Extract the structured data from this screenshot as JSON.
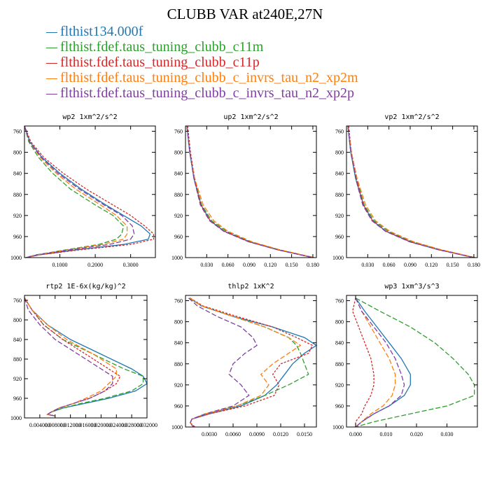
{
  "figure": {
    "title": "CLUBB VAR at240E,27N"
  },
  "legend": [
    {
      "name": "flthist134.000f",
      "color": "#1f77b4"
    },
    {
      "name": "flthist.fdef.taus_tuning_clubb_c11m",
      "color": "#2ca02c"
    },
    {
      "name": "flthist.fdef.taus_tuning_clubb_c11p",
      "color": "#d62728"
    },
    {
      "name": "flthist.fdef.taus_tuning_clubb_c_invrs_tau_n2_xp2m",
      "color": "#ff7f0e"
    },
    {
      "name": "flthist.fdef.taus_tuning_clubb_c_invrs_tau_n2_xp2p",
      "color": "#7f3fa0"
    }
  ],
  "chart_data": [
    {
      "type": "line",
      "title": "wp2  1xm^2/s^2",
      "xlim": [
        0,
        0.37
      ],
      "ylim": [
        750,
        1000
      ],
      "xticks": [
        0.1,
        0.2,
        0.3
      ],
      "xtick_labels": [
        "0.1000",
        "0.2000",
        "0.3000"
      ],
      "yticks": [
        760,
        800,
        840,
        880,
        920,
        960,
        1000
      ],
      "ytick_labels": [
        "760",
        "800",
        "840",
        "880",
        "920",
        "960",
        "1000"
      ],
      "y": [
        750,
        780,
        810,
        840,
        870,
        900,
        920,
        940,
        955,
        965,
        975,
        985,
        995,
        1000
      ],
      "series": [
        {
          "values": [
            0.0,
            0.015,
            0.05,
            0.1,
            0.16,
            0.23,
            0.28,
            0.33,
            0.355,
            0.35,
            0.28,
            0.15,
            0.04,
            0.005
          ]
        },
        {
          "values": [
            0.0,
            0.012,
            0.04,
            0.08,
            0.13,
            0.2,
            0.25,
            0.28,
            0.275,
            0.26,
            0.21,
            0.12,
            0.03,
            0.003
          ]
        },
        {
          "values": [
            0.0,
            0.018,
            0.055,
            0.11,
            0.175,
            0.25,
            0.3,
            0.34,
            0.365,
            0.365,
            0.3,
            0.16,
            0.04,
            0.005
          ]
        },
        {
          "values": [
            0.0,
            0.014,
            0.045,
            0.09,
            0.145,
            0.215,
            0.26,
            0.29,
            0.29,
            0.28,
            0.22,
            0.125,
            0.035,
            0.004
          ]
        },
        {
          "values": [
            0.0,
            0.014,
            0.048,
            0.095,
            0.155,
            0.225,
            0.275,
            0.305,
            0.31,
            0.3,
            0.24,
            0.13,
            0.035,
            0.004
          ]
        }
      ]
    },
    {
      "type": "line",
      "title": "up2  1xm^2/s^2",
      "xlim": [
        0,
        0.185
      ],
      "ylim": [
        750,
        1000
      ],
      "xticks": [
        0.03,
        0.06,
        0.09,
        0.12,
        0.15,
        0.18
      ],
      "xtick_labels": [
        "0.030",
        "0.060",
        "0.090",
        "0.120",
        "0.150",
        "0.180"
      ],
      "yticks": [
        760,
        800,
        840,
        880,
        920,
        960,
        1000
      ],
      "ytick_labels": [
        "760",
        "800",
        "840",
        "880",
        "920",
        "960",
        "1000"
      ],
      "y": [
        750,
        800,
        850,
        900,
        930,
        950,
        970,
        985,
        1000
      ],
      "series": [
        {
          "values": [
            0.002,
            0.006,
            0.012,
            0.022,
            0.035,
            0.055,
            0.09,
            0.13,
            0.18
          ]
        },
        {
          "values": [
            0.002,
            0.006,
            0.012,
            0.023,
            0.037,
            0.058,
            0.092,
            0.132,
            0.182
          ]
        },
        {
          "values": [
            0.003,
            0.007,
            0.013,
            0.022,
            0.035,
            0.055,
            0.09,
            0.13,
            0.18
          ]
        },
        {
          "values": [
            0.002,
            0.006,
            0.013,
            0.025,
            0.04,
            0.06,
            0.094,
            0.133,
            0.182
          ]
        },
        {
          "values": [
            0.002,
            0.006,
            0.012,
            0.021,
            0.034,
            0.054,
            0.089,
            0.13,
            0.18
          ]
        }
      ]
    },
    {
      "type": "line",
      "title": "vp2  1xm^2/s^2",
      "xlim": [
        0,
        0.185
      ],
      "ylim": [
        750,
        1000
      ],
      "xticks": [
        0.03,
        0.06,
        0.09,
        0.12,
        0.15,
        0.18
      ],
      "xtick_labels": [
        "0.030",
        "0.060",
        "0.090",
        "0.120",
        "0.150",
        "0.180"
      ],
      "yticks": [
        760,
        800,
        840,
        880,
        920,
        960,
        1000
      ],
      "ytick_labels": [
        "760",
        "800",
        "840",
        "880",
        "920",
        "960",
        "1000"
      ],
      "y": [
        750,
        800,
        850,
        900,
        930,
        950,
        970,
        985,
        1000
      ],
      "series": [
        {
          "values": [
            0.002,
            0.006,
            0.013,
            0.024,
            0.037,
            0.056,
            0.09,
            0.13,
            0.18
          ]
        },
        {
          "values": [
            0.002,
            0.006,
            0.014,
            0.025,
            0.039,
            0.059,
            0.093,
            0.133,
            0.182
          ]
        },
        {
          "values": [
            0.003,
            0.007,
            0.014,
            0.024,
            0.037,
            0.056,
            0.09,
            0.13,
            0.18
          ]
        },
        {
          "values": [
            0.002,
            0.007,
            0.015,
            0.027,
            0.041,
            0.061,
            0.095,
            0.134,
            0.182
          ]
        },
        {
          "values": [
            0.002,
            0.006,
            0.013,
            0.023,
            0.036,
            0.055,
            0.089,
            0.13,
            0.18
          ]
        }
      ]
    },
    {
      "type": "line",
      "title": "rtp2  1E-6x(kg/kg)^2",
      "xlim": [
        0,
        0.032
      ],
      "ylim": [
        750,
        1000
      ],
      "xticks": [
        0.004,
        0.008,
        0.012,
        0.016,
        0.02,
        0.024,
        0.028,
        0.032
      ],
      "xtick_labels": [
        "0.004000",
        "0.008000",
        "0.012000",
        "0.016000",
        "0.020000",
        "0.024000",
        "0.028000",
        "0.032000"
      ],
      "yticks": [
        760,
        800,
        840,
        880,
        920,
        960,
        1000
      ],
      "ytick_labels": [
        "760",
        "800",
        "840",
        "880",
        "920",
        "960",
        "1000"
      ],
      "y": [
        755,
        780,
        810,
        840,
        870,
        900,
        915,
        930,
        945,
        960,
        970,
        980,
        988,
        993,
        996
      ],
      "series": [
        {
          "values": [
            0.0,
            0.002,
            0.006,
            0.012,
            0.02,
            0.028,
            0.031,
            0.032,
            0.029,
            0.022,
            0.016,
            0.01,
            0.007,
            0.006,
            0.008
          ]
        },
        {
          "values": [
            0.0,
            0.002,
            0.005,
            0.01,
            0.018,
            0.026,
            0.031,
            0.031,
            0.028,
            0.021,
            0.015,
            0.01,
            0.007,
            0.006,
            0.008
          ]
        },
        {
          "values": [
            0.0,
            0.002,
            0.005,
            0.01,
            0.016,
            0.022,
            0.025,
            0.024,
            0.021,
            0.017,
            0.013,
            0.009,
            0.007,
            0.006,
            0.008
          ]
        },
        {
          "values": [
            0.0,
            0.002,
            0.006,
            0.011,
            0.018,
            0.024,
            0.024,
            0.022,
            0.02,
            0.016,
            0.013,
            0.009,
            0.007,
            0.006,
            0.008
          ]
        },
        {
          "values": [
            0.0,
            0.001,
            0.004,
            0.008,
            0.014,
            0.02,
            0.023,
            0.023,
            0.021,
            0.017,
            0.013,
            0.009,
            0.007,
            0.006,
            0.008
          ]
        }
      ]
    },
    {
      "type": "line",
      "title": "thlp2  1xK^2",
      "xlim": [
        0,
        0.0165
      ],
      "ylim": [
        750,
        1000
      ],
      "xticks": [
        0.003,
        0.006,
        0.009,
        0.012,
        0.015
      ],
      "xtick_labels": [
        "0.0030",
        "0.0060",
        "0.0090",
        "0.0120",
        "0.0150"
      ],
      "yticks": [
        760,
        800,
        840,
        880,
        920,
        960,
        1000
      ],
      "ytick_labels": [
        "760",
        "800",
        "840",
        "880",
        "920",
        "960",
        "1000"
      ],
      "y": [
        755,
        770,
        790,
        810,
        830,
        845,
        860,
        880,
        900,
        920,
        940,
        960,
        975,
        985,
        992,
        1000
      ],
      "series": [
        {
          "values": [
            0.0005,
            0.002,
            0.006,
            0.011,
            0.015,
            0.0165,
            0.015,
            0.0135,
            0.0125,
            0.0115,
            0.01,
            0.007,
            0.003,
            0.0008,
            0.0006,
            0.001
          ]
        },
        {
          "values": [
            0.0005,
            0.002,
            0.006,
            0.01,
            0.013,
            0.014,
            0.0145,
            0.015,
            0.0155,
            0.013,
            0.01,
            0.0065,
            0.0025,
            0.0008,
            0.0006,
            0.001
          ]
        },
        {
          "values": [
            0.0006,
            0.0022,
            0.0065,
            0.011,
            0.014,
            0.016,
            0.0155,
            0.012,
            0.011,
            0.0118,
            0.0112,
            0.0075,
            0.003,
            0.0008,
            0.0006,
            0.0012
          ]
        },
        {
          "values": [
            0.0006,
            0.002,
            0.006,
            0.01,
            0.013,
            0.0145,
            0.013,
            0.011,
            0.0095,
            0.0105,
            0.0095,
            0.0065,
            0.0025,
            0.0008,
            0.0006,
            0.001
          ]
        },
        {
          "values": [
            0.0004,
            0.0015,
            0.004,
            0.007,
            0.0085,
            0.009,
            0.0075,
            0.006,
            0.0055,
            0.007,
            0.008,
            0.006,
            0.0025,
            0.0008,
            0.0006,
            0.001
          ]
        }
      ]
    },
    {
      "type": "line",
      "title": "wp3  1xm^3/s^3",
      "xlim": [
        -0.003,
        0.04
      ],
      "ylim": [
        750,
        1000
      ],
      "xticks": [
        0.0,
        0.01,
        0.02,
        0.03
      ],
      "xtick_labels": [
        "0.000",
        "0.010",
        "0.020",
        "0.030"
      ],
      "yticks": [
        760,
        800,
        840,
        880,
        920,
        960,
        1000
      ],
      "ytick_labels": [
        "760",
        "800",
        "840",
        "880",
        "920",
        "960",
        "1000"
      ],
      "y": [
        755,
        780,
        810,
        840,
        870,
        900,
        920,
        940,
        960,
        975,
        990,
        1000
      ],
      "series": [
        {
          "values": [
            0.0,
            0.003,
            0.007,
            0.011,
            0.015,
            0.018,
            0.018,
            0.016,
            0.011,
            0.006,
            0.002,
            0.0
          ]
        },
        {
          "values": [
            0.0,
            0.008,
            0.018,
            0.026,
            0.032,
            0.037,
            0.039,
            0.039,
            0.03,
            0.018,
            0.006,
            0.0
          ]
        },
        {
          "values": [
            0.0,
            -0.001,
            0.001,
            0.003,
            0.005,
            0.006,
            0.006,
            0.005,
            0.003,
            0.002,
            0.0,
            0.0
          ]
        },
        {
          "values": [
            0.0,
            0.002,
            0.005,
            0.008,
            0.011,
            0.013,
            0.013,
            0.012,
            0.009,
            0.005,
            0.002,
            0.0
          ]
        },
        {
          "values": [
            0.0,
            0.002,
            0.006,
            0.01,
            0.013,
            0.015,
            0.016,
            0.015,
            0.011,
            0.006,
            0.002,
            0.0
          ]
        }
      ]
    }
  ]
}
